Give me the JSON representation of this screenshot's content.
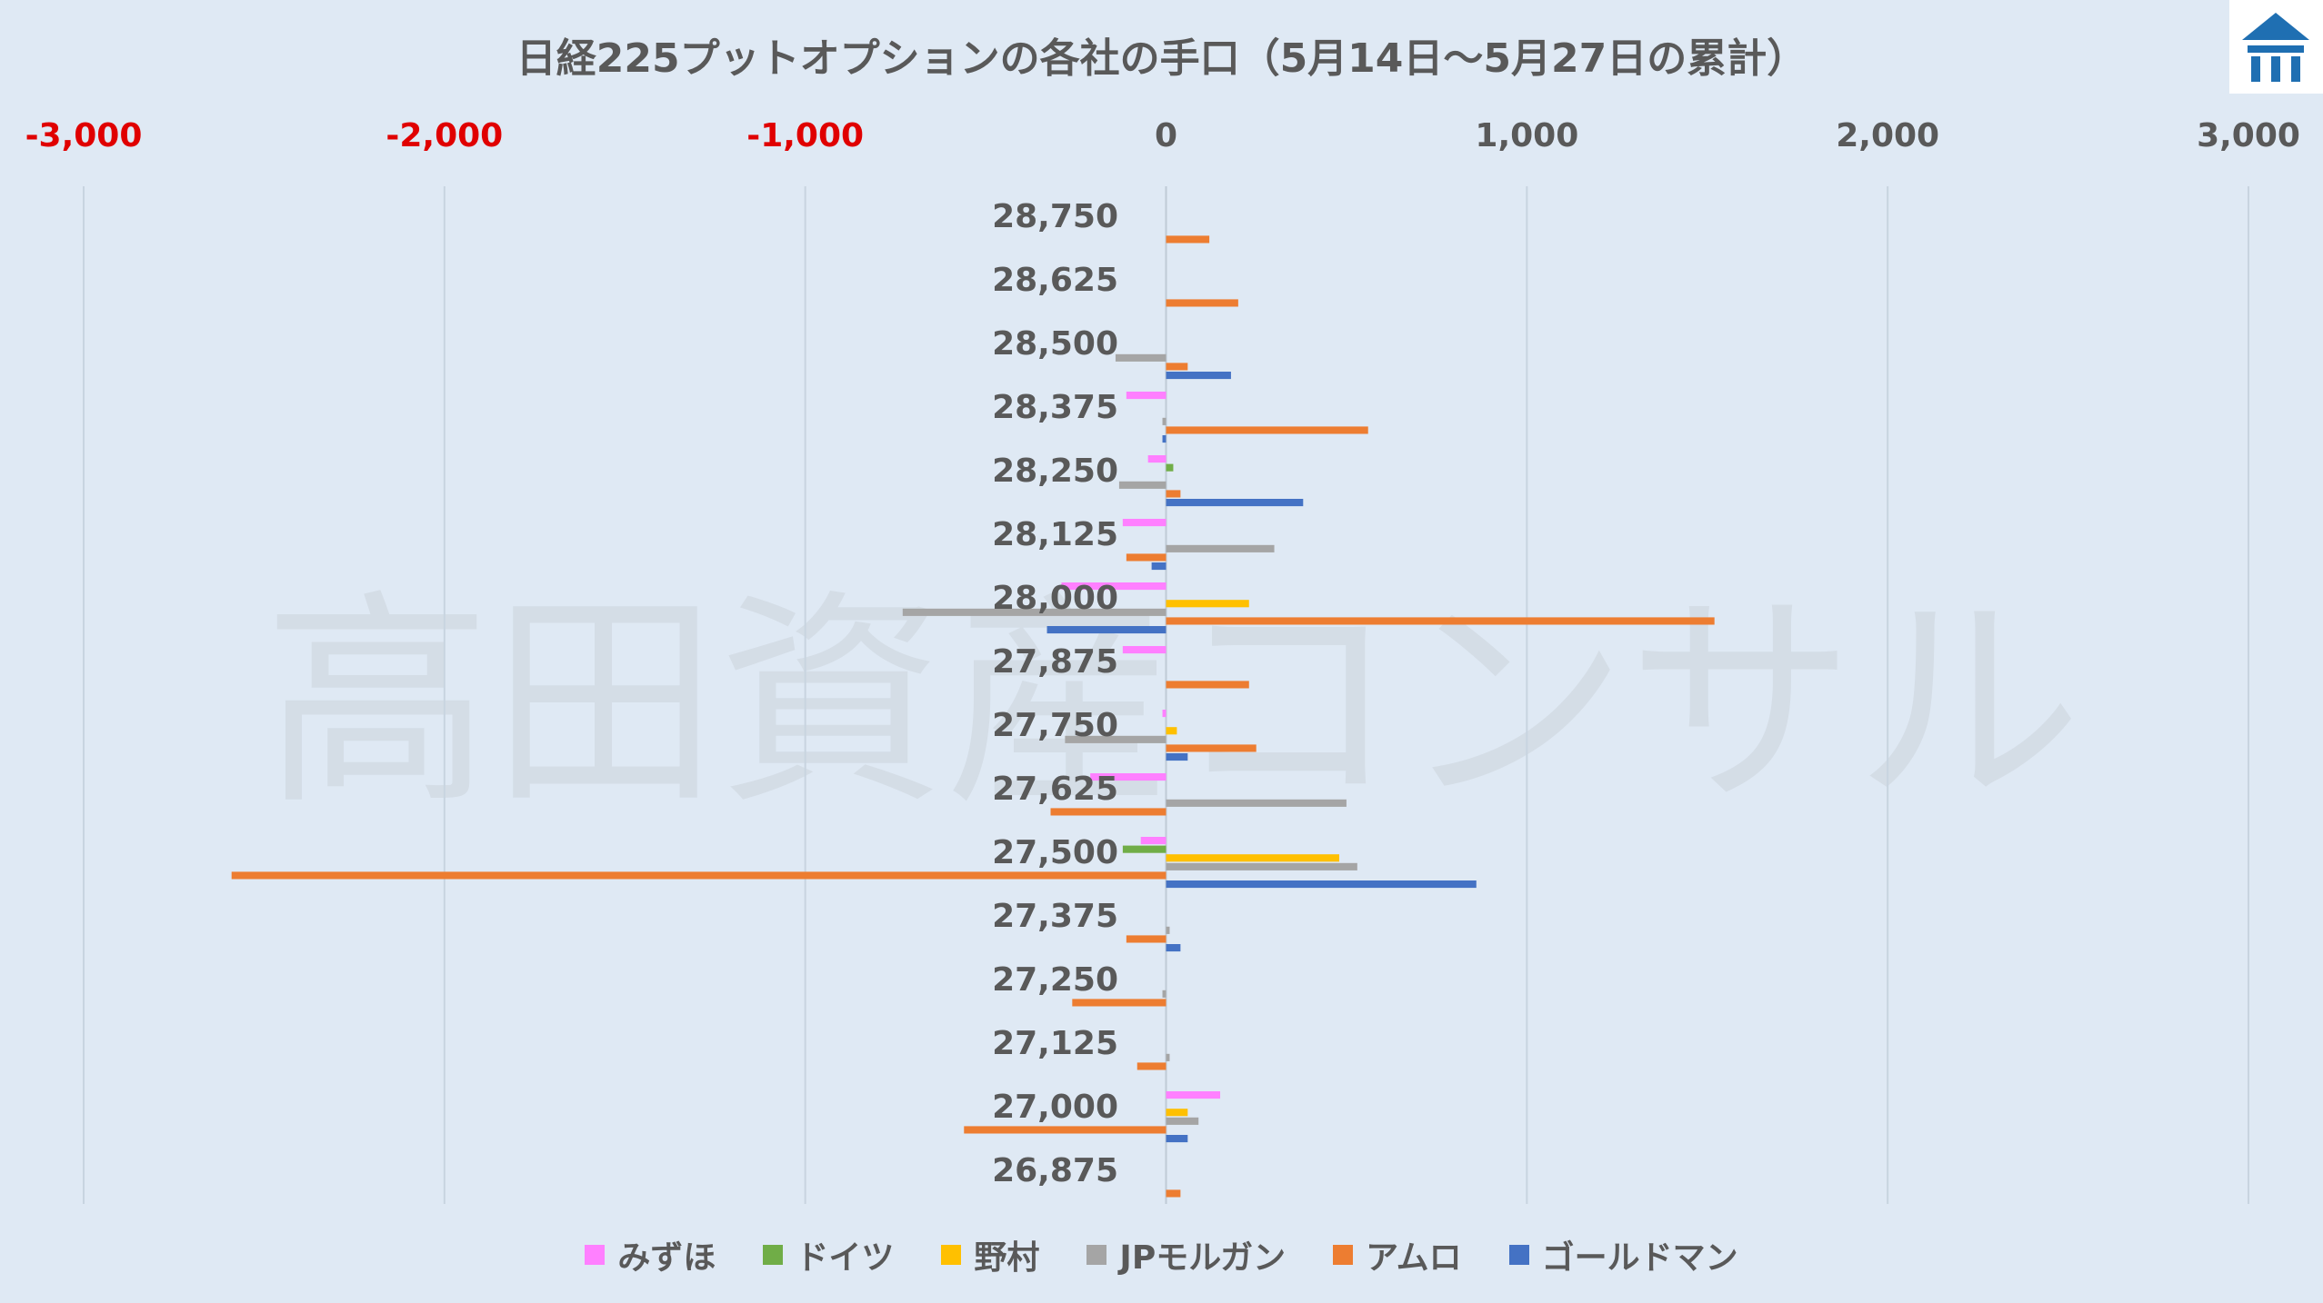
{
  "chart_data": {
    "type": "bar",
    "orientation": "horizontal",
    "title": "日経225プットオプションの各社の手口（5月14日～5月27日の累計）",
    "watermark": "高田資産コンサル",
    "xlim": [
      -3000,
      3000
    ],
    "x_ticks": [
      "-3,000",
      "-2,000",
      "-1,000",
      "0",
      "1,000",
      "2,000",
      "3,000"
    ],
    "x_tick_values": [
      -3000,
      -2000,
      -1000,
      0,
      1000,
      2000,
      3000
    ],
    "negative_tick_color": "#e00000",
    "positive_tick_color": "#595959",
    "grid": "vertical",
    "legend_position": "bottom",
    "categories": [
      "28,750",
      "28,625",
      "28,500",
      "28,375",
      "28,250",
      "28,125",
      "28,000",
      "27,875",
      "27,750",
      "27,625",
      "27,500",
      "27,375",
      "27,250",
      "27,125",
      "27,000",
      "26,875"
    ],
    "series": [
      {
        "name": "みずほ",
        "color": "#ff80ff",
        "values": [
          0,
          0,
          0,
          -110,
          -50,
          -120,
          -290,
          -120,
          -10,
          -210,
          -70,
          0,
          0,
          0,
          150,
          0
        ]
      },
      {
        "name": "ドイツ",
        "color": "#70ad47",
        "values": [
          0,
          0,
          0,
          0,
          20,
          0,
          0,
          0,
          0,
          0,
          -120,
          0,
          0,
          0,
          0,
          0
        ]
      },
      {
        "name": "野村",
        "color": "#ffc000",
        "values": [
          0,
          0,
          0,
          0,
          0,
          0,
          230,
          0,
          30,
          0,
          480,
          0,
          0,
          0,
          60,
          0
        ]
      },
      {
        "name": "JPモルガン",
        "color": "#a5a5a5",
        "values": [
          0,
          0,
          -140,
          -10,
          -130,
          300,
          -730,
          0,
          -280,
          500,
          530,
          10,
          -10,
          10,
          90,
          0
        ]
      },
      {
        "name": "アムロ",
        "color": "#ed7d31",
        "values": [
          120,
          200,
          60,
          560,
          40,
          -110,
          1520,
          230,
          250,
          -320,
          -2590,
          -110,
          -260,
          -80,
          -560,
          40
        ]
      },
      {
        "name": "ゴールドマン",
        "color": "#4472c4",
        "values": [
          0,
          0,
          180,
          -10,
          380,
          -40,
          -330,
          0,
          60,
          0,
          860,
          40,
          0,
          0,
          60,
          0
        ]
      }
    ]
  }
}
